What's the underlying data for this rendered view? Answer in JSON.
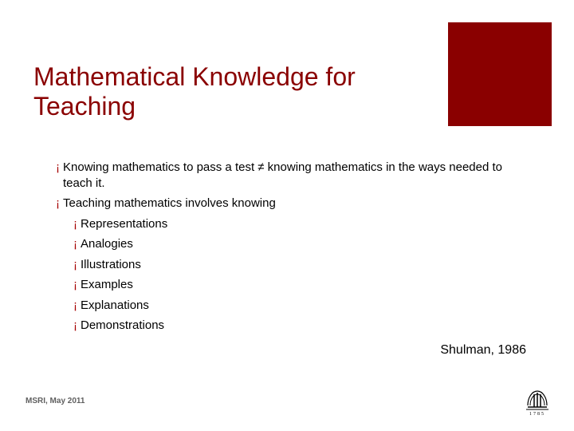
{
  "colors": {
    "accent": "#8a0000",
    "title": "#8a0000",
    "bullet_marker": "#a60000",
    "body_text": "#000000",
    "footer_text": "#606060",
    "background": "#ffffff"
  },
  "title": "Mathematical Knowledge for Teaching",
  "bullets": [
    {
      "level": 1,
      "text": "Knowing mathematics to pass a test ≠ knowing mathematics in the ways needed to teach it."
    },
    {
      "level": 1,
      "text": "Teaching mathematics involves knowing"
    },
    {
      "level": 2,
      "text": "Representations"
    },
    {
      "level": 2,
      "text": "Analogies"
    },
    {
      "level": 2,
      "text": "Illustrations"
    },
    {
      "level": 2,
      "text": "Examples"
    },
    {
      "level": 2,
      "text": "Explanations"
    },
    {
      "level": 2,
      "text": "Demonstrations"
    }
  ],
  "bullet_marker": "¡",
  "citation": "Shulman, 1986",
  "footer": "MSRI, May 2011",
  "logo": {
    "arch_stroke": "#000000",
    "column_stroke": "#000000",
    "year_text": "1785",
    "year_color": "#000000"
  },
  "typography": {
    "title_fontsize": 32,
    "body_fontsize": 15,
    "citation_fontsize": 16,
    "footer_fontsize": 10
  }
}
